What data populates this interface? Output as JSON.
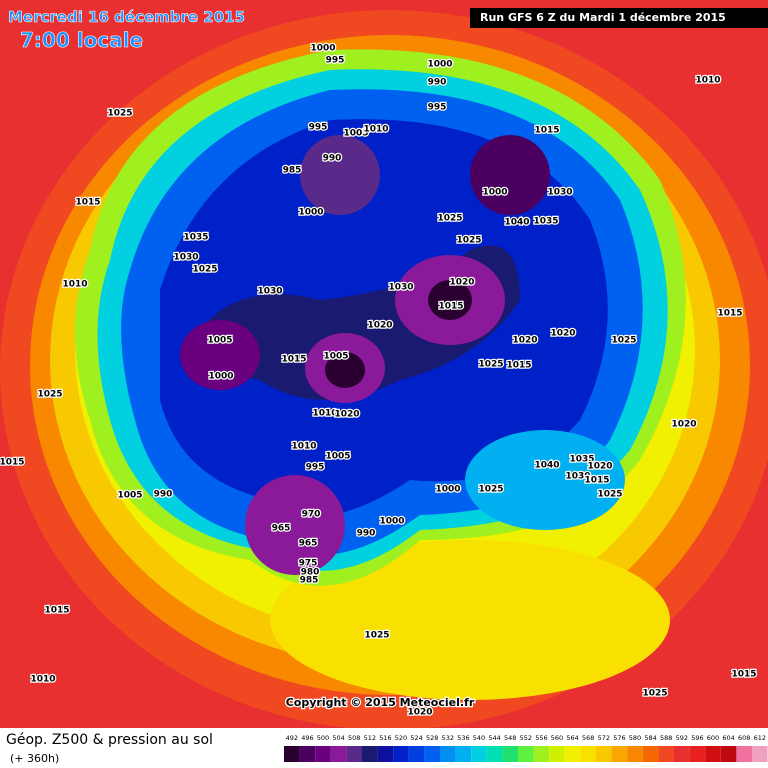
{
  "header": {
    "date": "Mercredi 16 décembre 2015",
    "time": "7:00 locale",
    "run": "Run GFS 6 Z du Mardi 1 décembre 2015"
  },
  "footer": {
    "title": "Géop. Z500 & pression au sol",
    "lead": "(+ 360h)",
    "copyright": "Copyright © 2015 Meteociel.fr"
  },
  "scale": {
    "values": [
      492,
      496,
      500,
      504,
      508,
      512,
      516,
      520,
      524,
      528,
      532,
      536,
      540,
      544,
      548,
      552,
      556,
      560,
      564,
      568,
      572,
      576,
      580,
      584,
      588,
      592,
      596,
      600,
      604,
      608,
      612
    ],
    "colors": [
      "#2a0030",
      "#4b0060",
      "#6a0080",
      "#8a1a9a",
      "#5a2a8a",
      "#1a1a70",
      "#1010a0",
      "#0020c8",
      "#0040e0",
      "#0060f0",
      "#0090f0",
      "#00b0f0",
      "#00d0e0",
      "#00e0b0",
      "#20e070",
      "#60f040",
      "#a0f020",
      "#d0f000",
      "#f0f000",
      "#f8e000",
      "#f8c800",
      "#f8a800",
      "#f88800",
      "#f86800",
      "#f04820",
      "#e83030",
      "#e82020",
      "#d01010",
      "#c00810",
      "#f070a0",
      "#f0a0c0"
    ]
  },
  "pressure_labels": [
    1000,
    995,
    1000,
    990,
    995,
    1010,
    1025,
    995,
    1005,
    1010,
    1015,
    990,
    985,
    1000,
    1030,
    1040,
    1035,
    1015,
    1000,
    1025,
    1035,
    1025,
    1030,
    1025,
    1010,
    1020,
    1030,
    1030,
    1015,
    1015,
    1020,
    1020,
    1020,
    1025,
    1005,
    1005,
    1015,
    1025,
    1015,
    1000,
    1025,
    1010,
    1020,
    1020,
    1010,
    1005,
    995,
    1015,
    1040,
    1035,
    1020,
    1030,
    1015,
    1025,
    1000,
    1025,
    1005,
    990,
    970,
    990,
    1000,
    965,
    965,
    975,
    980,
    985,
    1015,
    1025,
    1010,
    1015,
    1025,
    1020
  ]
}
